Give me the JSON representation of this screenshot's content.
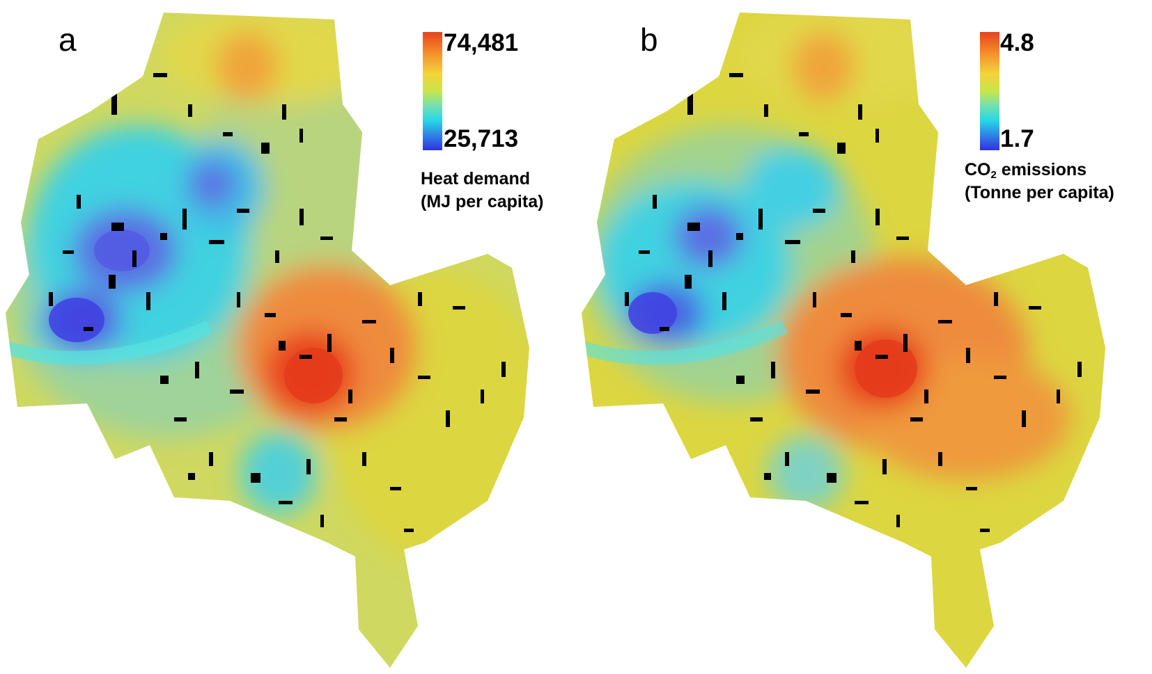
{
  "panels": [
    {
      "letter": "a",
      "colorbar": {
        "max_label": "74,481",
        "min_label": "25,713",
        "max_value": 74481,
        "min_value": 25713
      },
      "legend": {
        "line1": "Heat demand",
        "line2": "(MJ per capita)"
      }
    },
    {
      "letter": "b",
      "colorbar": {
        "max_label": "4.8",
        "min_label": "1.7",
        "max_value": 4.8,
        "min_value": 1.7
      },
      "legend": {
        "line1_pre": "CO",
        "line1_sub": "2",
        "line1_post": " emissions",
        "line2": "(Tonne per capita)"
      }
    }
  ],
  "colors": {
    "high": "#e8401c",
    "mid_high": "#f4902a",
    "mid": "#d8e040",
    "mid_low": "#9fd39a",
    "low_cyan": "#25d7e6",
    "low": "#3232e0",
    "buildings": "#000000"
  }
}
